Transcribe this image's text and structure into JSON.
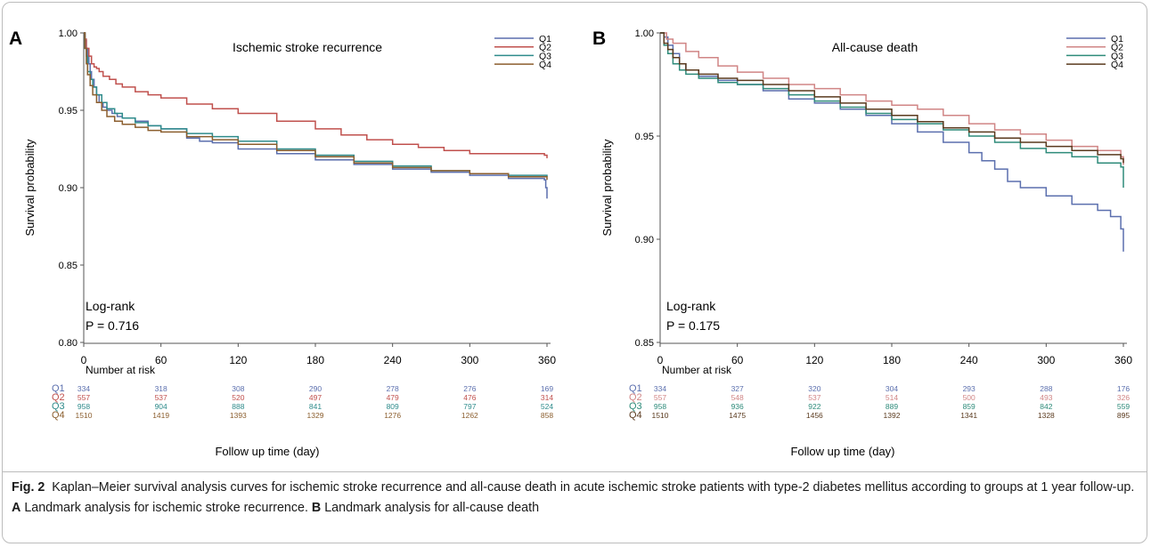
{
  "chart_data": [
    {
      "panel_letter": "A",
      "type": "line",
      "title": "Ischemic stroke recurrence",
      "xlabel": "Follow up time (day)",
      "ylabel": "Survival probability",
      "xlim": [
        0,
        360
      ],
      "ylim": [
        0.8,
        1.0
      ],
      "x_ticks": [
        "0",
        "60",
        "120",
        "180",
        "240",
        "300",
        "360"
      ],
      "y_ticks": [
        "0.80",
        "0.85",
        "0.90",
        "0.95",
        "1.00"
      ],
      "grid": false,
      "legend_position": "top-right",
      "annotation": [
        "Log-rank",
        "P = 0.716"
      ],
      "series": [
        {
          "name": "Q1",
          "color": "#5b6fae",
          "x": [
            0,
            1,
            2,
            3,
            4,
            5,
            6,
            8,
            10,
            12,
            15,
            18,
            22,
            26,
            30,
            40,
            50,
            60,
            80,
            90,
            100,
            120,
            150,
            180,
            210,
            240,
            270,
            300,
            330,
            358,
            359,
            360
          ],
          "y": [
            1.0,
            0.995,
            0.99,
            0.985,
            0.98,
            0.975,
            0.97,
            0.965,
            0.96,
            0.955,
            0.952,
            0.95,
            0.948,
            0.946,
            0.945,
            0.943,
            0.94,
            0.938,
            0.932,
            0.93,
            0.929,
            0.925,
            0.922,
            0.918,
            0.915,
            0.912,
            0.91,
            0.908,
            0.906,
            0.905,
            0.9,
            0.893
          ]
        },
        {
          "name": "Q2",
          "color": "#c0504d",
          "x": [
            0,
            1,
            2,
            4,
            6,
            8,
            10,
            12,
            15,
            20,
            25,
            30,
            40,
            50,
            60,
            80,
            100,
            120,
            150,
            180,
            200,
            220,
            240,
            260,
            280,
            300,
            330,
            358,
            360
          ],
          "y": [
            1.0,
            0.996,
            0.99,
            0.985,
            0.98,
            0.978,
            0.977,
            0.975,
            0.972,
            0.97,
            0.967,
            0.965,
            0.962,
            0.96,
            0.958,
            0.954,
            0.951,
            0.948,
            0.943,
            0.938,
            0.934,
            0.931,
            0.928,
            0.926,
            0.924,
            0.922,
            0.922,
            0.921,
            0.919
          ]
        },
        {
          "name": "Q3",
          "color": "#2e8b8b",
          "x": [
            0,
            1,
            2,
            3,
            5,
            7,
            10,
            14,
            18,
            24,
            30,
            40,
            50,
            60,
            80,
            100,
            120,
            150,
            180,
            210,
            240,
            270,
            300,
            330,
            360
          ],
          "y": [
            1.0,
            0.99,
            0.985,
            0.975,
            0.97,
            0.965,
            0.96,
            0.955,
            0.951,
            0.948,
            0.945,
            0.942,
            0.94,
            0.938,
            0.935,
            0.933,
            0.93,
            0.925,
            0.921,
            0.917,
            0.914,
            0.911,
            0.909,
            0.908,
            0.907
          ]
        },
        {
          "name": "Q4",
          "color": "#8b5e2e",
          "x": [
            0,
            1,
            2,
            3,
            5,
            7,
            10,
            14,
            18,
            24,
            30,
            40,
            50,
            60,
            80,
            100,
            120,
            150,
            180,
            210,
            240,
            270,
            300,
            330,
            360
          ],
          "y": [
            1.0,
            0.99,
            0.98,
            0.973,
            0.966,
            0.96,
            0.955,
            0.95,
            0.946,
            0.943,
            0.941,
            0.939,
            0.937,
            0.936,
            0.933,
            0.931,
            0.928,
            0.924,
            0.92,
            0.916,
            0.913,
            0.911,
            0.909,
            0.907,
            0.905
          ]
        }
      ],
      "risk_table": {
        "header": "Number at risk",
        "times": [
          0,
          60,
          120,
          180,
          240,
          300,
          360
        ],
        "rows": [
          {
            "label": "Q1",
            "values": [
              "334",
              "318",
              "308",
              "290",
              "278",
              "276",
              "169"
            ]
          },
          {
            "label": "Q2",
            "values": [
              "557",
              "537",
              "520",
              "497",
              "479",
              "476",
              "314"
            ]
          },
          {
            "label": "Q3",
            "values": [
              "958",
              "904",
              "888",
              "841",
              "809",
              "797",
              "524"
            ]
          },
          {
            "label": "Q4",
            "values": [
              "1510",
              "1419",
              "1393",
              "1329",
              "1276",
              "1262",
              "858"
            ]
          }
        ]
      }
    },
    {
      "panel_letter": "B",
      "type": "line",
      "title": "All-cause death",
      "xlabel": "Follow up time (day)",
      "ylabel": "Survival probability",
      "xlim": [
        0,
        360
      ],
      "ylim": [
        0.85,
        1.0
      ],
      "x_ticks": [
        "0",
        "60",
        "120",
        "180",
        "240",
        "300",
        "360"
      ],
      "y_ticks": [
        "0.85",
        "0.90",
        "0.95",
        "1.00"
      ],
      "grid": false,
      "legend_position": "top-right",
      "annotation": [
        "Log-rank",
        "P = 0.175"
      ],
      "series": [
        {
          "name": "Q1",
          "color": "#5b6fae",
          "x": [
            0,
            3,
            6,
            10,
            15,
            20,
            30,
            45,
            60,
            80,
            100,
            120,
            140,
            160,
            180,
            200,
            220,
            240,
            250,
            260,
            270,
            280,
            300,
            320,
            340,
            350,
            358,
            360
          ],
          "y": [
            1.0,
            0.998,
            0.994,
            0.99,
            0.985,
            0.982,
            0.979,
            0.977,
            0.975,
            0.972,
            0.968,
            0.966,
            0.963,
            0.96,
            0.956,
            0.952,
            0.947,
            0.942,
            0.938,
            0.934,
            0.928,
            0.925,
            0.921,
            0.917,
            0.914,
            0.911,
            0.905,
            0.894
          ]
        },
        {
          "name": "Q2",
          "color": "#d08585",
          "x": [
            0,
            5,
            10,
            20,
            30,
            45,
            60,
            80,
            100,
            120,
            140,
            160,
            180,
            200,
            220,
            240,
            260,
            280,
            300,
            320,
            340,
            358,
            360
          ],
          "y": [
            1.0,
            0.997,
            0.995,
            0.991,
            0.988,
            0.984,
            0.981,
            0.978,
            0.975,
            0.973,
            0.97,
            0.967,
            0.965,
            0.963,
            0.96,
            0.956,
            0.953,
            0.951,
            0.948,
            0.945,
            0.943,
            0.94,
            0.936
          ]
        },
        {
          "name": "Q3",
          "color": "#2e8b7a",
          "x": [
            0,
            3,
            6,
            10,
            15,
            20,
            30,
            45,
            60,
            80,
            100,
            120,
            140,
            160,
            180,
            200,
            220,
            240,
            260,
            280,
            300,
            320,
            340,
            358,
            360
          ],
          "y": [
            1.0,
            0.994,
            0.99,
            0.985,
            0.982,
            0.98,
            0.978,
            0.976,
            0.975,
            0.973,
            0.97,
            0.967,
            0.964,
            0.961,
            0.958,
            0.956,
            0.953,
            0.95,
            0.947,
            0.944,
            0.942,
            0.94,
            0.937,
            0.935,
            0.925
          ]
        },
        {
          "name": "Q4",
          "color": "#5a3a1e",
          "x": [
            0,
            3,
            6,
            10,
            15,
            20,
            30,
            45,
            60,
            80,
            100,
            120,
            140,
            160,
            180,
            200,
            220,
            240,
            260,
            280,
            300,
            320,
            340,
            358,
            360
          ],
          "y": [
            1.0,
            0.995,
            0.992,
            0.988,
            0.985,
            0.982,
            0.98,
            0.978,
            0.977,
            0.975,
            0.972,
            0.969,
            0.966,
            0.963,
            0.96,
            0.957,
            0.954,
            0.952,
            0.949,
            0.947,
            0.945,
            0.943,
            0.941,
            0.939,
            0.937
          ]
        }
      ],
      "risk_table": {
        "header": "Number at risk",
        "times": [
          0,
          60,
          120,
          180,
          240,
          300,
          360
        ],
        "rows": [
          {
            "label": "Q1",
            "values": [
              "334",
              "327",
              "320",
              "304",
              "293",
              "288",
              "176"
            ]
          },
          {
            "label": "Q2",
            "values": [
              "557",
              "548",
              "537",
              "514",
              "500",
              "493",
              "326"
            ]
          },
          {
            "label": "Q3",
            "values": [
              "958",
              "936",
              "922",
              "889",
              "859",
              "842",
              "559"
            ]
          },
          {
            "label": "Q4",
            "values": [
              "1510",
              "1475",
              "1456",
              "1392",
              "1341",
              "1328",
              "895"
            ]
          }
        ]
      }
    }
  ],
  "caption": {
    "label": "Fig. 2",
    "text_1": "Kaplan–Meier survival analysis curves for ischemic stroke recurrence and all-cause death in acute ischemic stroke patients with type-2 diabetes mellitus according to groups at 1 year follow-up.",
    "letter_a": "A",
    "text_a": "Landmark analysis for ischemic stroke recurrence.",
    "letter_b": "B",
    "text_b": "Landmark analysis for all-cause death"
  }
}
